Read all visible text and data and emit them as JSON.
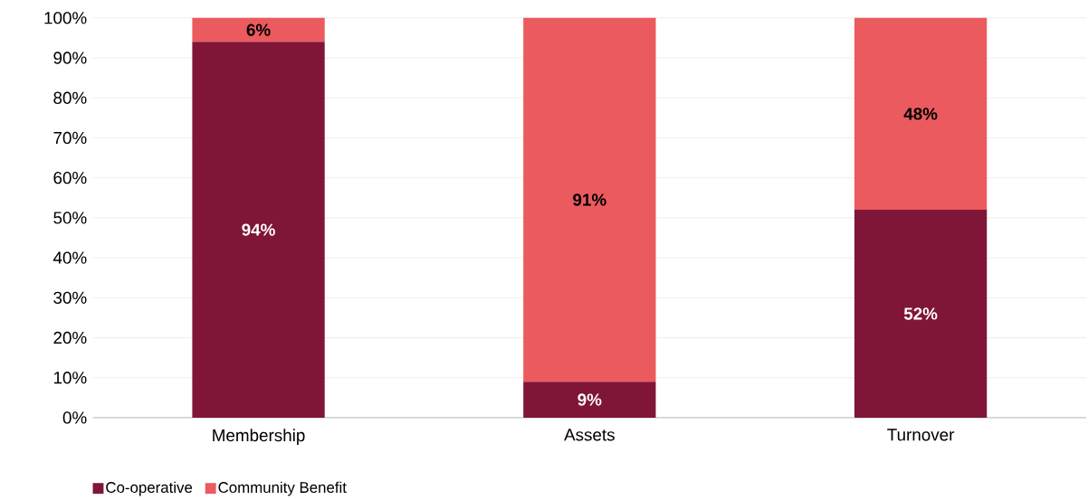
{
  "chart_data": {
    "type": "bar",
    "stacked": true,
    "categories": [
      "Membership",
      "Assets",
      "Turnover"
    ],
    "series": [
      {
        "name": "Co-operative",
        "color": "#7f1637",
        "values": [
          94,
          9,
          52
        ],
        "value_labels": [
          "94%",
          "9%",
          "52%"
        ]
      },
      {
        "name": "Community Benefit",
        "color": "#eb5a5e",
        "values": [
          6,
          91,
          48
        ],
        "value_labels": [
          "6%",
          "91%",
          "48%"
        ]
      }
    ],
    "ylim": [
      0,
      100
    ],
    "yticks": [
      {
        "value": 0,
        "label": "0%"
      },
      {
        "value": 10,
        "label": "10%"
      },
      {
        "value": 20,
        "label": "20%"
      },
      {
        "value": 30,
        "label": "30%"
      },
      {
        "value": 40,
        "label": "40%"
      },
      {
        "value": 50,
        "label": "50%"
      },
      {
        "value": 60,
        "label": "60%"
      },
      {
        "value": 70,
        "label": "70%"
      },
      {
        "value": 80,
        "label": "80%"
      },
      {
        "value": 90,
        "label": "90%"
      },
      {
        "value": 100,
        "label": "100%"
      }
    ],
    "grid": "y",
    "legend": "bottom left"
  }
}
